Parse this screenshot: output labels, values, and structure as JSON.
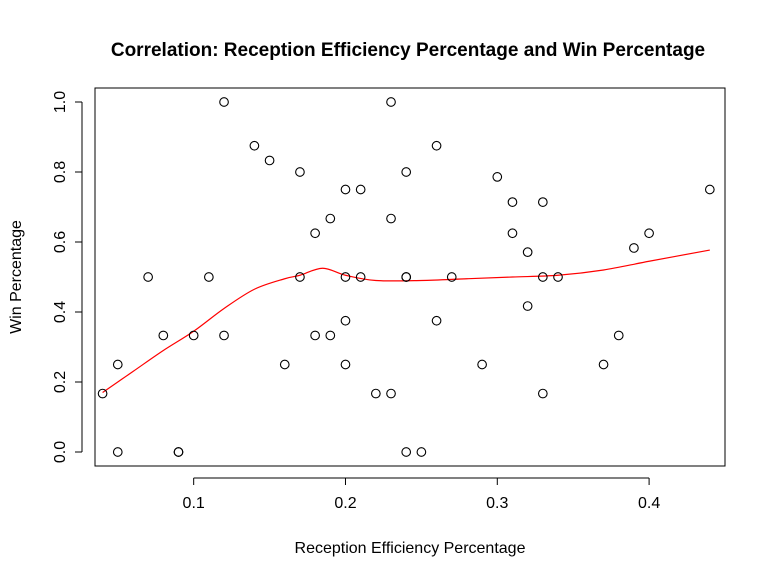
{
  "chart_data": {
    "type": "scatter",
    "title": "Correlation: Reception Efficiency Percentage and Win Percentage",
    "xlabel": "Reception Efficiency Percentage",
    "ylabel": "Win Percentage",
    "xlim": [
      0.035,
      0.45
    ],
    "ylim": [
      -0.04,
      1.04
    ],
    "x_ticks": [
      0.1,
      0.2,
      0.3,
      0.4
    ],
    "x_tick_labels": [
      "0.1",
      "0.2",
      "0.3",
      "0.4"
    ],
    "y_ticks": [
      0.0,
      0.2,
      0.4,
      0.6,
      0.8,
      1.0
    ],
    "y_tick_labels": [
      "0.0",
      "0.2",
      "0.4",
      "0.6",
      "0.8",
      "1.0"
    ],
    "grid": false,
    "series": [
      {
        "points": [
          [
            0.04,
            0.167
          ],
          [
            0.05,
            0.25
          ],
          [
            0.05,
            0.0
          ],
          [
            0.07,
            0.5
          ],
          [
            0.08,
            0.333
          ],
          [
            0.09,
            0.0
          ],
          [
            0.09,
            0.0
          ],
          [
            0.1,
            0.333
          ],
          [
            0.11,
            0.5
          ],
          [
            0.12,
            1.0
          ],
          [
            0.12,
            0.333
          ],
          [
            0.14,
            0.875
          ],
          [
            0.15,
            0.833
          ],
          [
            0.16,
            0.25
          ],
          [
            0.17,
            0.8
          ],
          [
            0.17,
            0.5
          ],
          [
            0.18,
            0.625
          ],
          [
            0.18,
            0.333
          ],
          [
            0.19,
            0.667
          ],
          [
            0.19,
            0.333
          ],
          [
            0.2,
            0.75
          ],
          [
            0.2,
            0.5
          ],
          [
            0.2,
            0.375
          ],
          [
            0.2,
            0.25
          ],
          [
            0.21,
            0.75
          ],
          [
            0.21,
            0.5
          ],
          [
            0.22,
            0.167
          ],
          [
            0.23,
            1.0
          ],
          [
            0.23,
            0.667
          ],
          [
            0.23,
            0.167
          ],
          [
            0.24,
            0.8
          ],
          [
            0.24,
            0.5
          ],
          [
            0.24,
            0.5
          ],
          [
            0.24,
            0.0
          ],
          [
            0.25,
            0.0
          ],
          [
            0.26,
            0.875
          ],
          [
            0.26,
            0.375
          ],
          [
            0.27,
            0.5
          ],
          [
            0.29,
            0.25
          ],
          [
            0.3,
            0.786
          ],
          [
            0.31,
            0.714
          ],
          [
            0.31,
            0.625
          ],
          [
            0.32,
            0.571
          ],
          [
            0.32,
            0.417
          ],
          [
            0.33,
            0.714
          ],
          [
            0.33,
            0.5
          ],
          [
            0.33,
            0.167
          ],
          [
            0.34,
            0.5
          ],
          [
            0.37,
            0.25
          ],
          [
            0.38,
            0.333
          ],
          [
            0.39,
            0.583
          ],
          [
            0.4,
            0.625
          ],
          [
            0.44,
            0.75
          ]
        ]
      },
      {
        "kind": "smoother",
        "color": "#ff0000",
        "points": [
          [
            0.04,
            0.17
          ],
          [
            0.06,
            0.23
          ],
          [
            0.08,
            0.29
          ],
          [
            0.1,
            0.345
          ],
          [
            0.12,
            0.41
          ],
          [
            0.14,
            0.465
          ],
          [
            0.16,
            0.495
          ],
          [
            0.17,
            0.505
          ],
          [
            0.185,
            0.525
          ],
          [
            0.2,
            0.505
          ],
          [
            0.22,
            0.49
          ],
          [
            0.25,
            0.49
          ],
          [
            0.28,
            0.495
          ],
          [
            0.31,
            0.5
          ],
          [
            0.34,
            0.505
          ],
          [
            0.37,
            0.52
          ],
          [
            0.4,
            0.545
          ],
          [
            0.44,
            0.577
          ]
        ]
      }
    ]
  }
}
